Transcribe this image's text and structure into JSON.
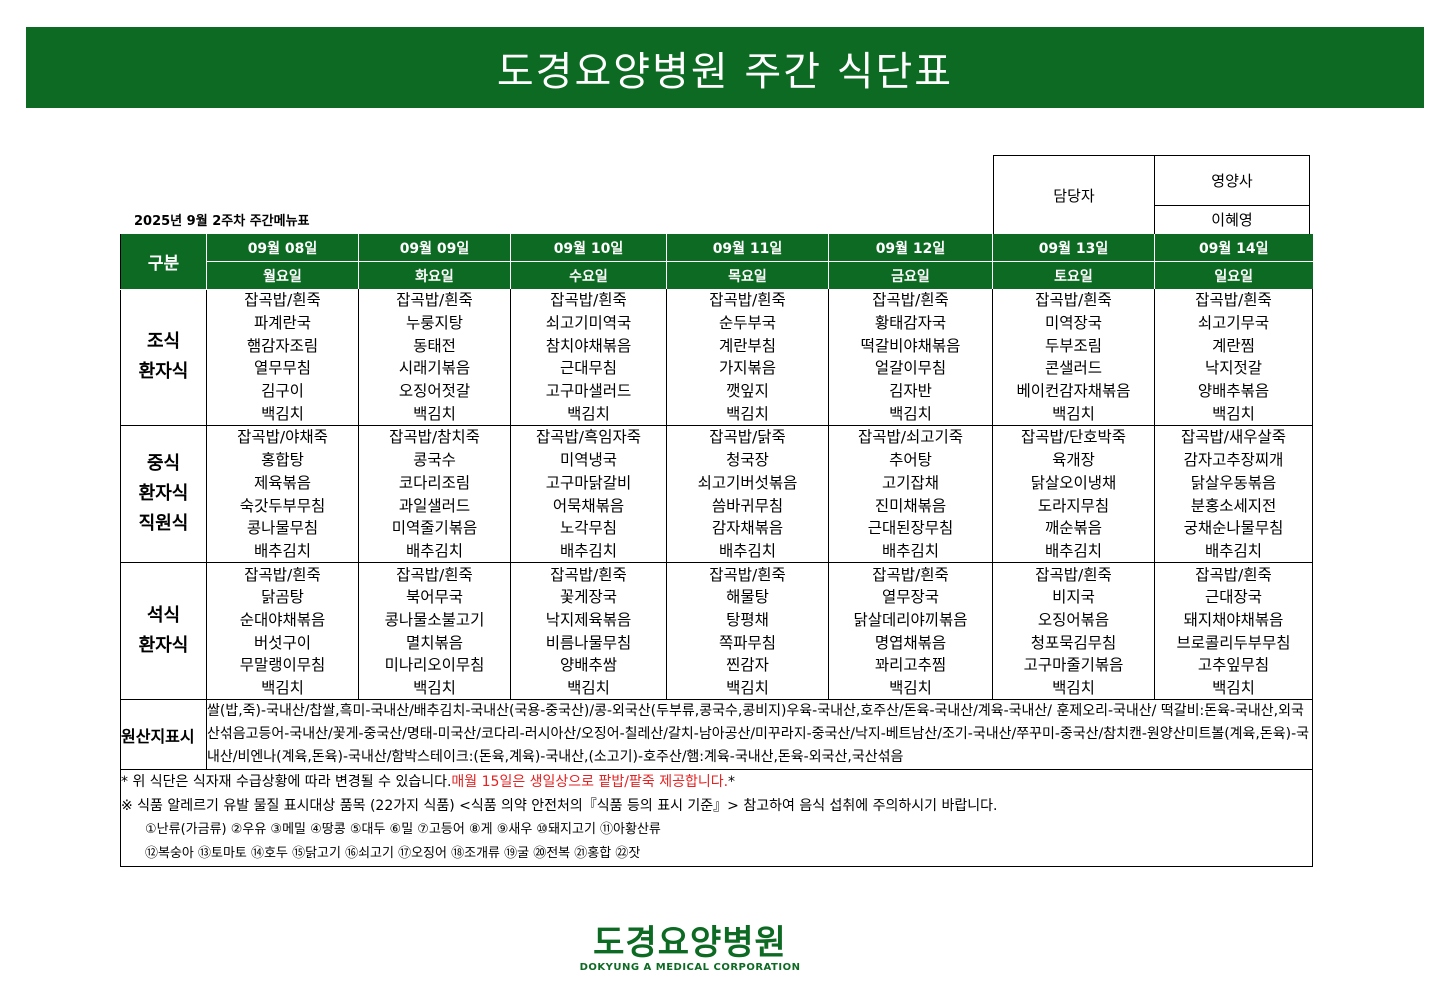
{
  "title": "도경요양병원 주간 식단표",
  "sign": {
    "manager_label": "담당자",
    "dietitian_label": "영양사",
    "dietitian_name": "이혜영"
  },
  "subtitle": "2025년 9월 2주차 주간메뉴표",
  "header": {
    "gubun": "구분",
    "dates": [
      "09월 08일",
      "09월 09일",
      "09월 10일",
      "09월 11일",
      "09월 12일",
      "09월 13일",
      "09월 14일"
    ],
    "weekdays": [
      "월요일",
      "화요일",
      "수요일",
      "목요일",
      "금요일",
      "토요일",
      "일요일"
    ]
  },
  "meals": [
    {
      "label": [
        "조식",
        "환자식"
      ],
      "rows": [
        [
          "잡곡밥/흰죽",
          "잡곡밥/흰죽",
          "잡곡밥/흰죽",
          "잡곡밥/흰죽",
          "잡곡밥/흰죽",
          "잡곡밥/흰죽",
          "잡곡밥/흰죽"
        ],
        [
          "파계란국",
          "누룽지탕",
          "쇠고기미역국",
          "순두부국",
          "황태감자국",
          "미역장국",
          "쇠고기무국"
        ],
        [
          "햄감자조림",
          "동태전",
          "참치야채볶음",
          "계란부침",
          "떡갈비야채볶음",
          "두부조림",
          "계란찜"
        ],
        [
          "열무무침",
          "시래기볶음",
          "근대무침",
          "가지볶음",
          "얼갈이무침",
          "콘샐러드",
          "낙지젓갈"
        ],
        [
          "김구이",
          "오징어젓갈",
          "고구마샐러드",
          "깻잎지",
          "김자반",
          "베이컨감자채볶음",
          "양배추볶음"
        ],
        [
          "백김치",
          "백김치",
          "백김치",
          "백김치",
          "백김치",
          "백김치",
          "백김치"
        ]
      ]
    },
    {
      "label": [
        "중식",
        "환자식",
        "직원식"
      ],
      "rows": [
        [
          "잡곡밥/야채죽",
          "잡곡밥/참치죽",
          "잡곡밥/흑임자죽",
          "잡곡밥/닭죽",
          "잡곡밥/쇠고기죽",
          "잡곡밥/단호박죽",
          "잡곡밥/새우살죽"
        ],
        [
          "홍합탕",
          "콩국수",
          "미역냉국",
          "청국장",
          "추어탕",
          "육개장",
          "감자고추장찌개"
        ],
        [
          "제육볶음",
          "코다리조림",
          "고구마닭갈비",
          "쇠고기버섯볶음",
          "고기잡채",
          "닭살오이냉채",
          "닭살우동볶음"
        ],
        [
          "숙갓두부무침",
          "과일샐러드",
          "어묵채볶음",
          "씀바귀무침",
          "진미채볶음",
          "도라지무침",
          "분홍소세지전"
        ],
        [
          "콩나물무침",
          "미역줄기볶음",
          "노각무침",
          "감자채볶음",
          "근대된장무침",
          "깨순볶음",
          "궁채순나물무침"
        ],
        [
          "배추김치",
          "배추김치",
          "배추김치",
          "배추김치",
          "배추김치",
          "배추김치",
          "배추김치"
        ]
      ]
    },
    {
      "label": [
        "석식",
        "환자식"
      ],
      "rows": [
        [
          "잡곡밥/흰죽",
          "잡곡밥/흰죽",
          "잡곡밥/흰죽",
          "잡곡밥/흰죽",
          "잡곡밥/흰죽",
          "잡곡밥/흰죽",
          "잡곡밥/흰죽"
        ],
        [
          "닭곰탕",
          "북어무국",
          "꽃게장국",
          "해물탕",
          "열무장국",
          "비지국",
          "근대장국"
        ],
        [
          "순대야채볶음",
          "콩나물소불고기",
          "낙지제육볶음",
          "탕평채",
          "닭살데리야끼볶음",
          "오징어볶음",
          "돼지채야채볶음"
        ],
        [
          "버섯구이",
          "멸치볶음",
          "비름나물무침",
          "쪽파무침",
          "명엽채볶음",
          "청포묵김무침",
          "브로콜리두부무침"
        ],
        [
          "무말랭이무침",
          "미나리오이무침",
          "양배추쌈",
          "찐감자",
          "꽈리고추찜",
          "고구마줄기볶음",
          "고추잎무침"
        ],
        [
          "백김치",
          "백김치",
          "백김치",
          "백김치",
          "백김치",
          "백김치",
          "백김치"
        ]
      ]
    }
  ],
  "origin": {
    "label": "원산지표시",
    "text": "쌀(밥,죽)-국내산/찹쌀,흑미-국내산/배추김치-국내산(국용-중국산)/콩-외국산(두부류,콩국수,콩비지)우육-국내산,호주산/돈육-국내산/계육-국내산/ 훈제오리-국내산/ 떡갈비:돈육-국내산,외국산섞음고등어-국내산/꽃게-중국산/명태-미국산/코다리-러시아산/오징어-칠레산/갈치-남아공산/미꾸라지-중국산/낙지-베트남산/조기-국내산/쭈꾸미-중국산/참치캔-원양산미트볼(계육,돈육)-국내산/비엔나(계육,돈육)-국내산/함박스테이크:(돈육,계육)-국내산,(소고기)-호주산/햄:계육-국내산,돈육-외국산,국산섞음"
  },
  "notes": {
    "change_prefix": "* 위 식단은 식자재 수급상황에 따라 변경될 수 있습니다.",
    "birthday": "매월 15일은 생일상으로 팥밥/팥죽 제공합니다.",
    "change_suffix": "*",
    "allergy": "※ 식품 알레르기 유발 물질 표시대상 품목 (22가지 식품) <식품 의약 안전처의『식품 등의 표시 기준』> 참고하여 음식 섭취에 주의하시기 바랍니다.",
    "allergens_line1": "①난류(가금류) ②우유 ③메밀 ④땅콩 ⑤대두 ⑥밀 ⑦고등어 ⑧게 ⑨새우 ⑩돼지고기 ⑪아황산류",
    "allergens_line2": "⑫복숭아 ⑬토마토 ⑭호두 ⑮닭고기 ⑯쇠고기 ⑰오징어 ⑱조개류 ⑲굴 ⑳전복 ㉑홍합 ㉒잣"
  },
  "logo": {
    "korean": "도경요양병원",
    "english": "DOKYUNG A MEDICAL CORPORATION"
  },
  "colors": {
    "primary_green": "#0d6a23",
    "highlight_red": "#e32222"
  }
}
